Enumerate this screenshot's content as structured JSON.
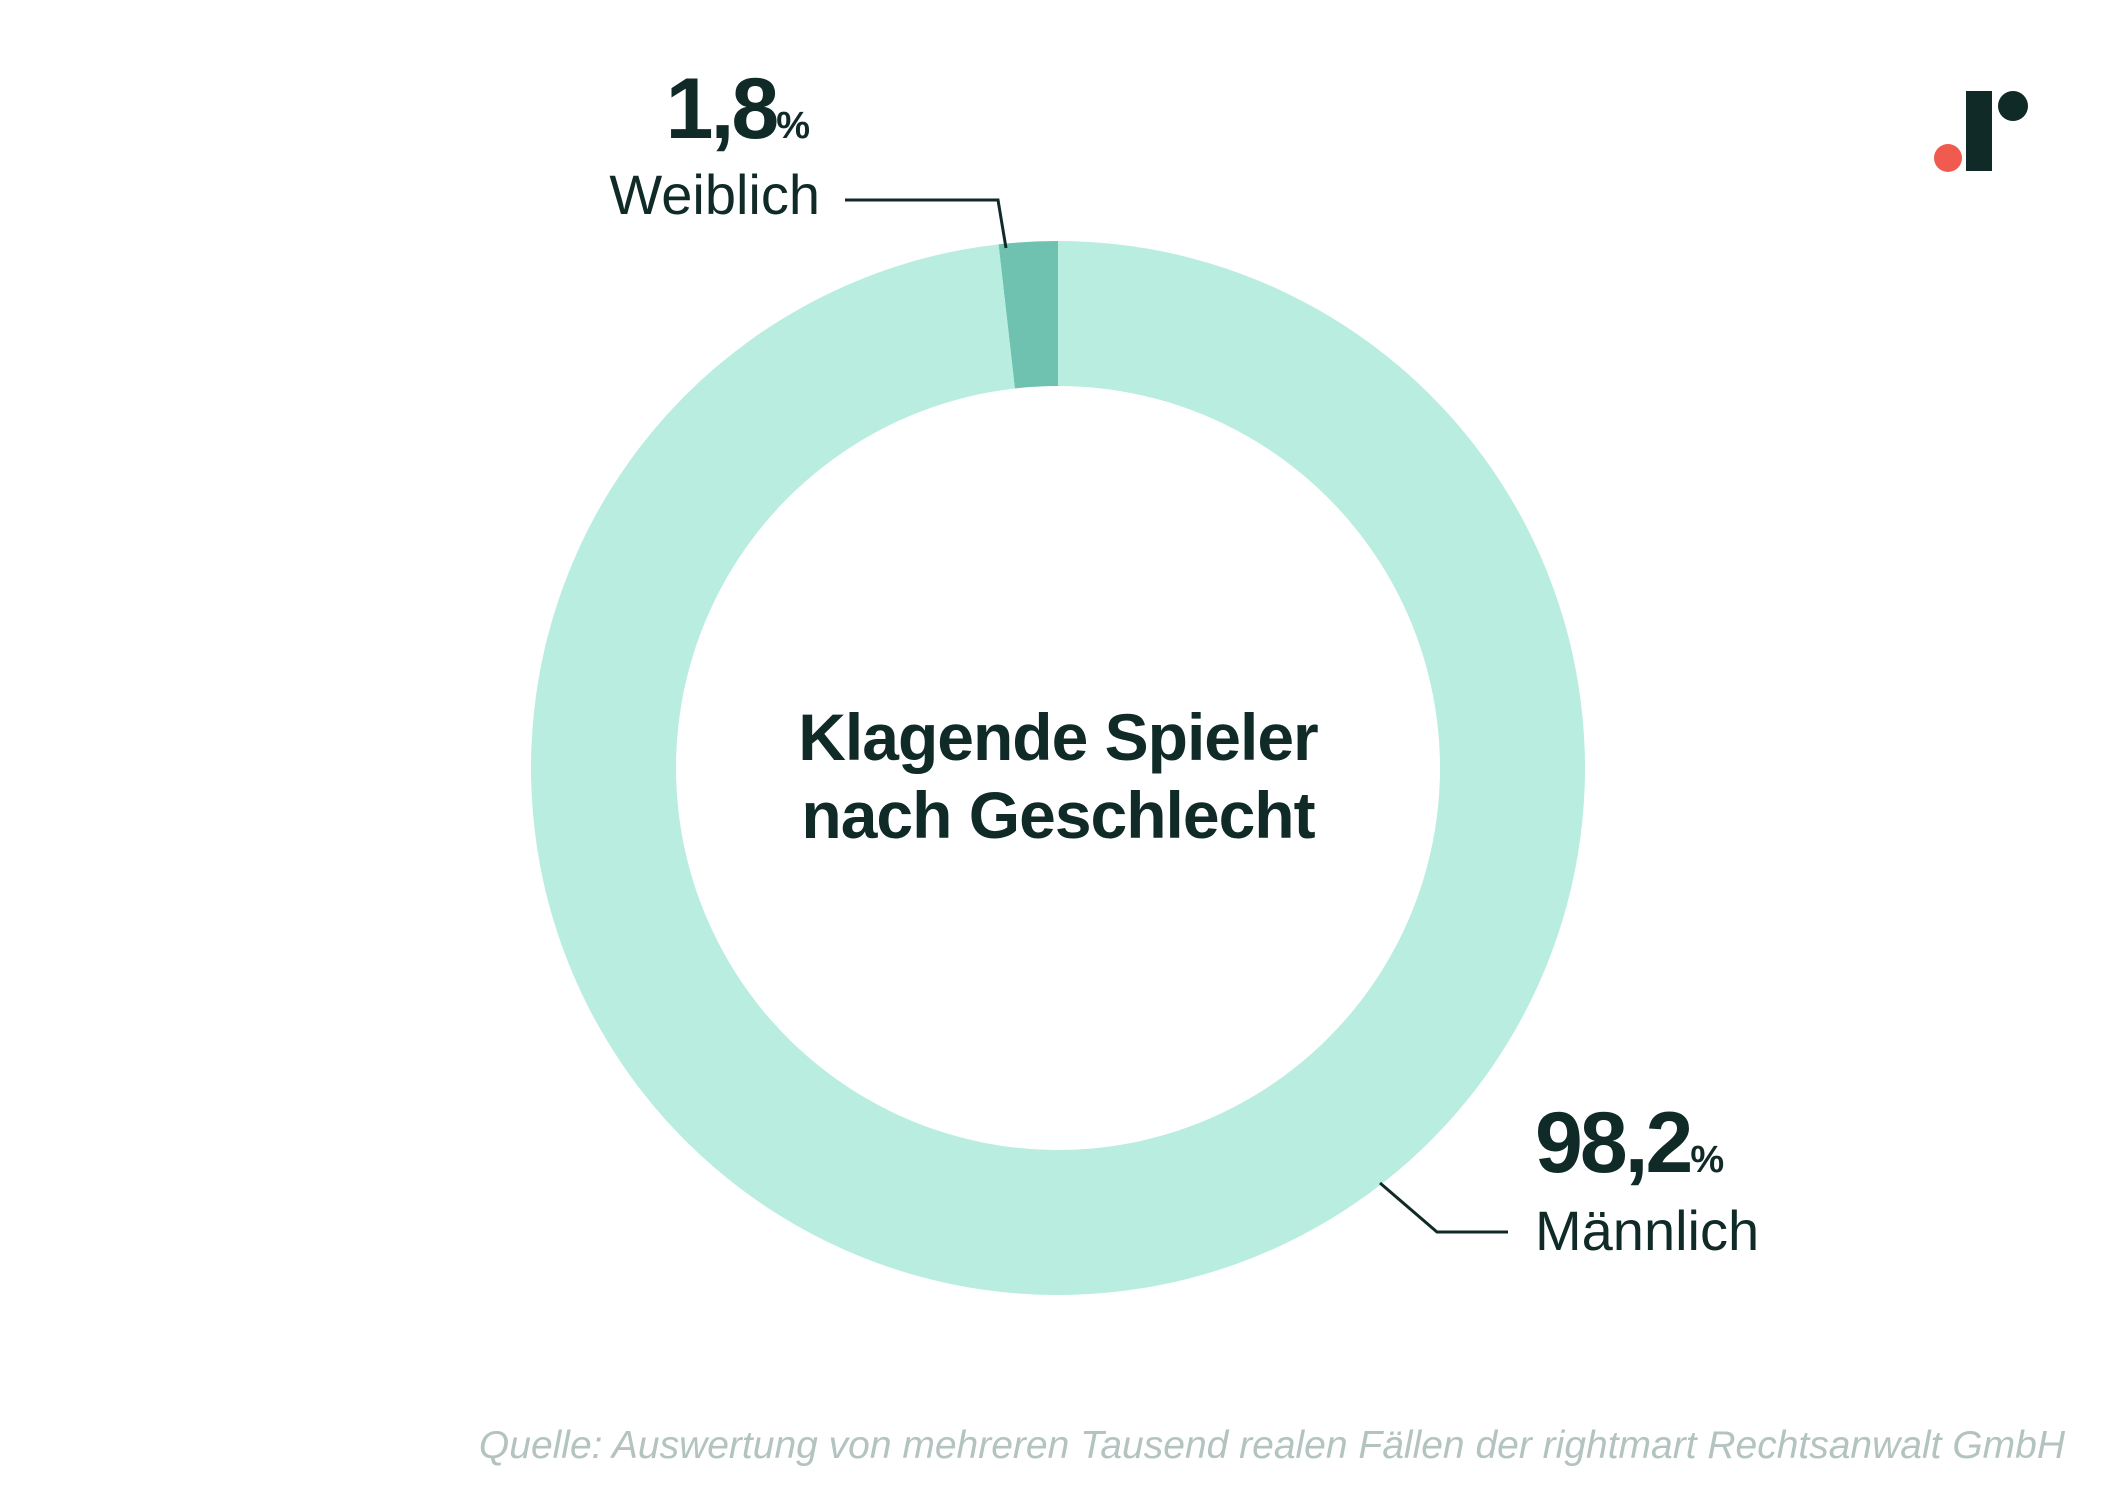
{
  "chart_data": {
    "type": "pie",
    "variant": "donut",
    "title": "Klagende Spieler nach Geschlecht",
    "title_lines": [
      "Klagende Spieler",
      "nach Geschlecht"
    ],
    "unit": "%",
    "slices": [
      {
        "label": "Weiblich",
        "value": 1.8,
        "value_label": "1,8",
        "color": "#6fc2b0"
      },
      {
        "label": "Männlich",
        "value": 98.2,
        "value_label": "98,2",
        "color": "#b8ede0"
      }
    ],
    "source": "Quelle: Auswertung von mehreren Tausend realen Fällen der rightmart Rechtsanwalt GmbH"
  },
  "colors": {
    "text": "#0f2a27",
    "leader_line": "#0f2a27",
    "source_text": "#b3c3bf",
    "logo_dot": "#f05a4f",
    "logo_mark": "#0f2a27"
  },
  "logo": {
    "icon": "rightmart-logo-icon"
  }
}
